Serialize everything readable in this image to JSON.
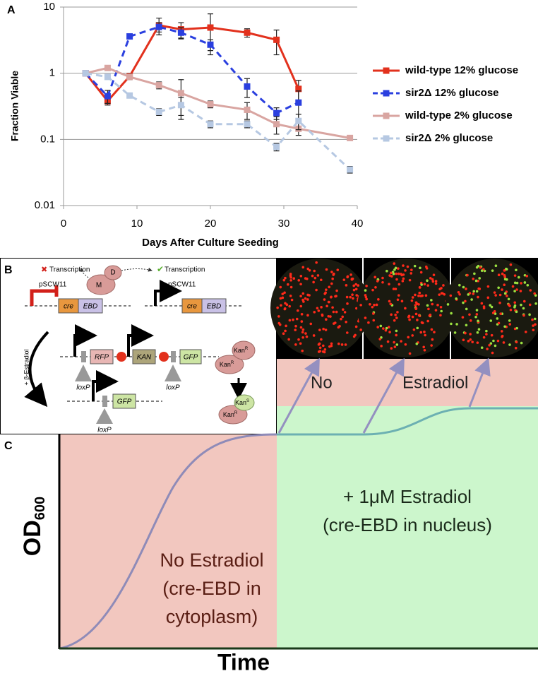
{
  "chart_data": {
    "type": "line",
    "panel_label": "A",
    "x_label": "Days After Culture Seeding",
    "y_label": "Fraction Viable",
    "xlim": [
      0,
      40
    ],
    "xticks": [
      0,
      10,
      20,
      30,
      40
    ],
    "ylim": [
      0.01,
      10
    ],
    "yticks": [
      0.01,
      0.1,
      1,
      10
    ],
    "yscale": "log",
    "grid": true,
    "legend": "right",
    "series": [
      {
        "name": "wild-type 12% glucose",
        "color": "#e2311d",
        "line_style": "solid",
        "x": [
          3,
          6,
          9,
          13,
          16,
          20,
          25,
          29,
          32
        ],
        "values": [
          1,
          0.38,
          0.9,
          5.3,
          4.6,
          4.9,
          4.1,
          3.2,
          0.58
        ],
        "errors": [
          0,
          0.05,
          0.1,
          1.5,
          1.2,
          3,
          0.6,
          1.3,
          0.2
        ]
      },
      {
        "name": "sir2Δ 12% glucose",
        "color": "#2a3fdf",
        "line_style": "dashed",
        "x": [
          3,
          6,
          9,
          13,
          16,
          20,
          25,
          29,
          32
        ],
        "values": [
          1,
          0.45,
          3.6,
          5.0,
          4.1,
          2.7,
          0.63,
          0.25,
          0.36
        ],
        "errors": [
          0,
          0.1,
          0.3,
          0.8,
          0.8,
          0.5,
          0.2,
          0.05,
          0.18
        ]
      },
      {
        "name": "wild-type 2% glucose",
        "color": "#d9a5a1",
        "line_style": "solid",
        "x": [
          3,
          6,
          9,
          13,
          16,
          20,
          25,
          29,
          32,
          39
        ],
        "values": [
          1,
          1.2,
          0.88,
          0.66,
          0.5,
          0.34,
          0.28,
          0.17,
          0.145,
          0.105
        ],
        "errors": [
          0,
          0.05,
          0.05,
          0.08,
          0.3,
          0.04,
          0.08,
          0.05,
          0.03,
          0
        ]
      },
      {
        "name": "sir2Δ 2% glucose",
        "color": "#b6c8e2",
        "line_style": "dashed",
        "x": [
          3,
          6,
          9,
          13,
          16,
          20,
          25,
          29,
          32,
          39
        ],
        "values": [
          1,
          0.88,
          0.46,
          0.26,
          0.33,
          0.17,
          0.17,
          0.077,
          0.19,
          0.035
        ],
        "errors": [
          0,
          0.05,
          0.04,
          0.03,
          0.1,
          0.02,
          0.02,
          0.01,
          0.05,
          0.004
        ]
      }
    ]
  },
  "panel_b": {
    "label": "B",
    "repressed": "Transcription",
    "active": "Transcription",
    "proteins": [
      "M",
      "D"
    ],
    "promoters": [
      "pSCW11",
      "pSCW11"
    ],
    "genes_top": [
      [
        "cre",
        "EBD"
      ],
      [
        "cre",
        "EBD"
      ]
    ],
    "construct": [
      "RFP",
      "KAN",
      "GFP"
    ],
    "excised": [
      "GFP"
    ],
    "loxp": [
      "loxP",
      "loxP",
      "loxP"
    ],
    "treatment": "+ β-Estradiol",
    "cells_before": [
      {
        "base": "Kan",
        "sup": "R"
      },
      {
        "base": "Kan",
        "sup": "R"
      }
    ],
    "cells_after": [
      {
        "base": "Kan",
        "sup": "S"
      },
      {
        "base": "Kan",
        "sup": "R"
      }
    ],
    "images_caption": [
      "No",
      "Estradiol"
    ]
  },
  "panel_c": {
    "label": "C",
    "treated": [
      "+ 1μM Estradiol",
      "(cre-EBD in nucleus)"
    ],
    "untreated": [
      "No Estradiol",
      "(cre-EBD in",
      "cytoplasm)"
    ],
    "y_label": {
      "base": "OD",
      "sub": "600"
    },
    "x_label": "Time"
  }
}
